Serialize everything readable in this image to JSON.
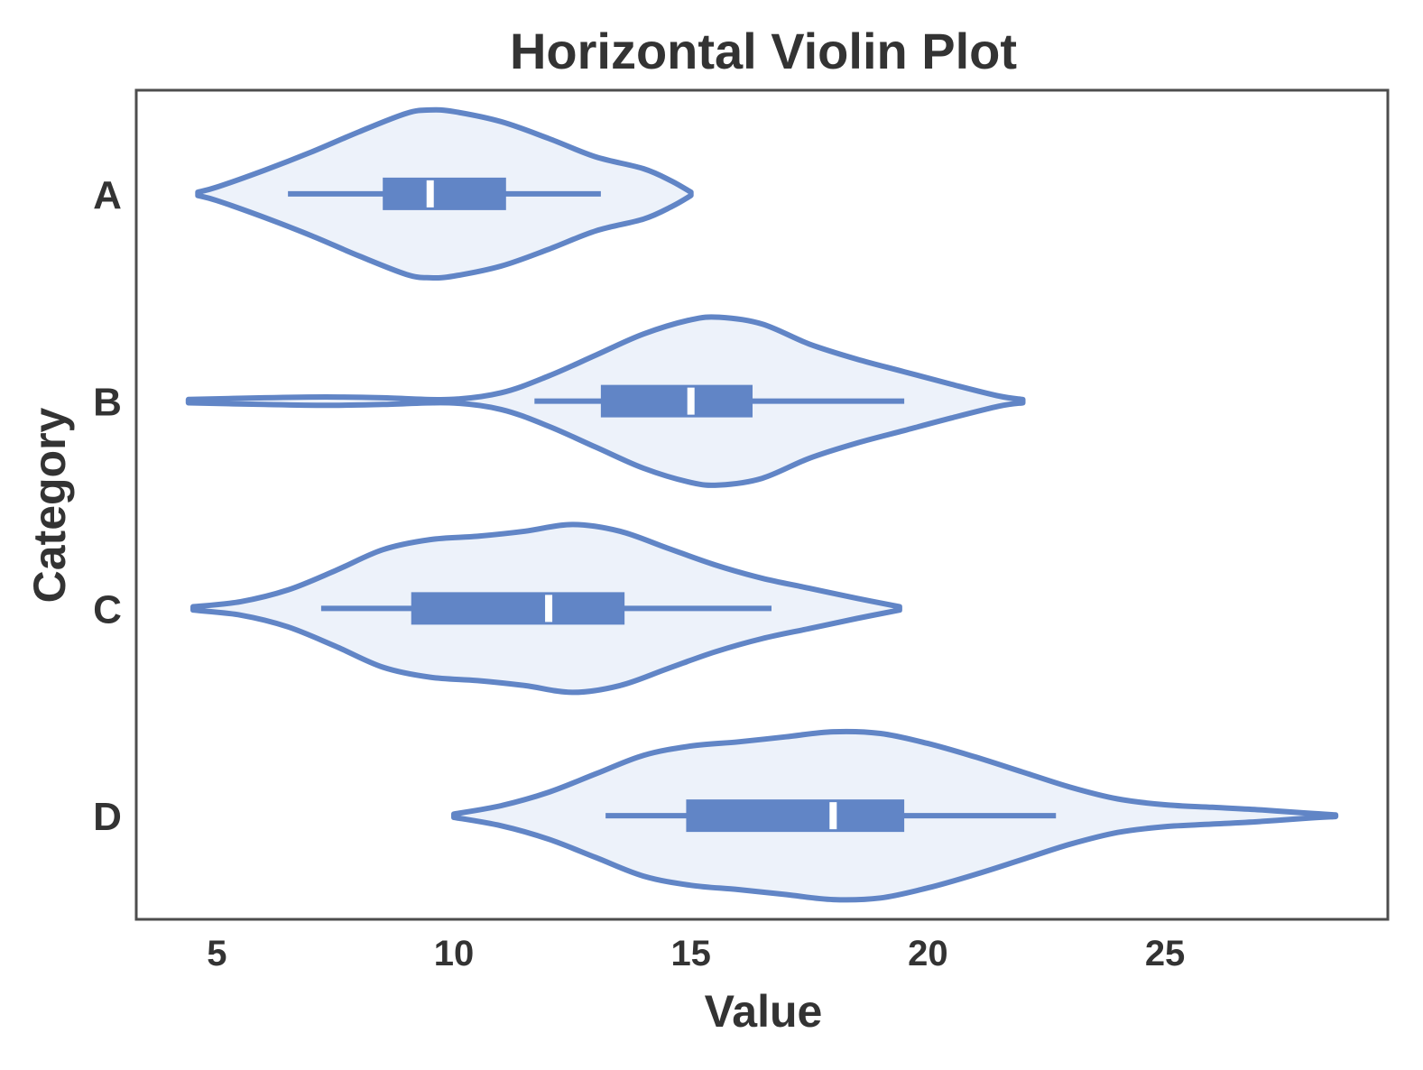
{
  "chart_data": {
    "type": "violin",
    "orientation": "horizontal",
    "title": "Horizontal Violin Plot",
    "xlabel": "Value",
    "ylabel": "Category",
    "xlim": [
      3.3,
      29.7
    ],
    "xticks": [
      5,
      10,
      15,
      20,
      25
    ],
    "grid": false,
    "colors": {
      "line": "#6185c6",
      "fill": "#edf2fa",
      "median": "#ffffff",
      "frame": "#4d4d4d",
      "text": "#333333"
    },
    "categories": [
      "A",
      "B",
      "C",
      "D"
    ],
    "series": [
      {
        "category": "A",
        "min": 6.5,
        "q1": 8.5,
        "median": 9.5,
        "q3": 11.1,
        "max": 13.1,
        "range": [
          4.6,
          15.0
        ],
        "density": [
          [
            4.6,
            0.02
          ],
          [
            5.0,
            0.08
          ],
          [
            6.0,
            0.28
          ],
          [
            7.0,
            0.5
          ],
          [
            8.0,
            0.74
          ],
          [
            9.0,
            0.96
          ],
          [
            9.5,
            1.0
          ],
          [
            10.0,
            0.98
          ],
          [
            11.0,
            0.86
          ],
          [
            12.0,
            0.66
          ],
          [
            13.0,
            0.44
          ],
          [
            14.0,
            0.3
          ],
          [
            14.6,
            0.15
          ],
          [
            15.0,
            0.02
          ]
        ]
      },
      {
        "category": "B",
        "min": 11.7,
        "q1": 13.1,
        "median": 15.0,
        "q3": 16.3,
        "max": 19.5,
        "range": [
          4.4,
          22.0
        ],
        "density": [
          [
            4.4,
            0.02
          ],
          [
            6.0,
            0.04
          ],
          [
            7.3,
            0.05
          ],
          [
            8.5,
            0.04
          ],
          [
            9.9,
            0.02
          ],
          [
            11.0,
            0.1
          ],
          [
            12.0,
            0.3
          ],
          [
            13.0,
            0.55
          ],
          [
            14.0,
            0.8
          ],
          [
            15.0,
            0.97
          ],
          [
            15.6,
            1.0
          ],
          [
            16.5,
            0.92
          ],
          [
            17.5,
            0.68
          ],
          [
            18.5,
            0.5
          ],
          [
            19.5,
            0.35
          ],
          [
            20.5,
            0.2
          ],
          [
            21.5,
            0.06
          ],
          [
            22.0,
            0.02
          ]
        ]
      },
      {
        "category": "C",
        "min": 7.2,
        "q1": 9.1,
        "median": 12.0,
        "q3": 13.6,
        "max": 16.7,
        "range": [
          4.5,
          19.4
        ],
        "density": [
          [
            4.5,
            0.02
          ],
          [
            5.5,
            0.08
          ],
          [
            6.5,
            0.22
          ],
          [
            7.5,
            0.45
          ],
          [
            8.5,
            0.7
          ],
          [
            9.5,
            0.82
          ],
          [
            10.5,
            0.86
          ],
          [
            11.5,
            0.92
          ],
          [
            12.5,
            1.0
          ],
          [
            13.5,
            0.92
          ],
          [
            14.5,
            0.72
          ],
          [
            15.5,
            0.52
          ],
          [
            16.5,
            0.36
          ],
          [
            17.5,
            0.24
          ],
          [
            18.5,
            0.12
          ],
          [
            19.4,
            0.02
          ]
        ]
      },
      {
        "category": "D",
        "min": 13.2,
        "q1": 14.9,
        "median": 18.0,
        "q3": 19.5,
        "max": 22.7,
        "range": [
          10.0,
          28.6
        ],
        "density": [
          [
            10.0,
            0.02
          ],
          [
            11.0,
            0.12
          ],
          [
            12.0,
            0.28
          ],
          [
            13.0,
            0.5
          ],
          [
            14.0,
            0.72
          ],
          [
            15.0,
            0.83
          ],
          [
            16.0,
            0.88
          ],
          [
            17.0,
            0.94
          ],
          [
            18.0,
            1.0
          ],
          [
            19.0,
            0.98
          ],
          [
            20.0,
            0.86
          ],
          [
            21.0,
            0.7
          ],
          [
            22.0,
            0.52
          ],
          [
            23.0,
            0.34
          ],
          [
            24.0,
            0.2
          ],
          [
            25.0,
            0.13
          ],
          [
            26.0,
            0.1
          ],
          [
            27.0,
            0.07
          ],
          [
            28.0,
            0.03
          ],
          [
            28.6,
            0.01
          ]
        ]
      }
    ]
  }
}
